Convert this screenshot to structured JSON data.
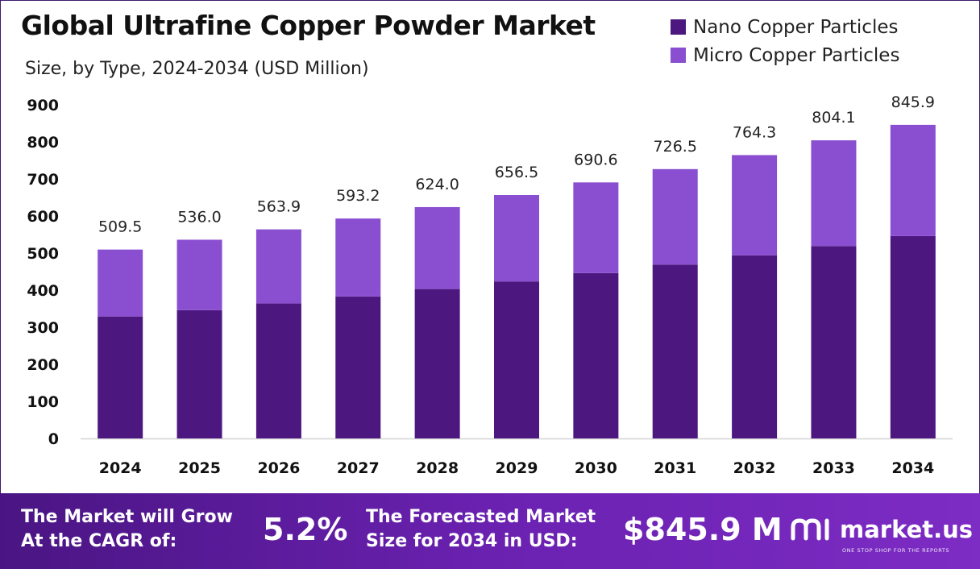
{
  "header": {
    "title": "Global Ultrafine Copper Powder Market",
    "subtitle": "Size, by Type, 2024-2034 (USD Million)"
  },
  "colors": {
    "nano": "#4d1780",
    "micro": "#8a4fd1",
    "footer_start": "#4a1583",
    "footer_end": "#7d2cc4"
  },
  "chart_data": {
    "type": "bar",
    "stacked": true,
    "title": "Global Ultrafine Copper Powder Market",
    "subtitle": "Size, by Type, 2024-2034 (USD Million)",
    "categories": [
      "2024",
      "2025",
      "2026",
      "2027",
      "2028",
      "2029",
      "2030",
      "2031",
      "2032",
      "2033",
      "2034"
    ],
    "series": [
      {
        "name": "Nano Copper Particles",
        "color": "#4d1780",
        "values": [
          329.0,
          346.0,
          364.0,
          383.0,
          403.0,
          423.5,
          446.0,
          469.0,
          494.0,
          519.0,
          546.0
        ]
      },
      {
        "name": "Micro Copper Particles",
        "color": "#8a4fd1",
        "values": [
          180.5,
          190.0,
          199.9,
          210.2,
          221.0,
          233.0,
          244.6,
          257.5,
          270.3,
          285.1,
          299.9
        ]
      }
    ],
    "totals": [
      509.5,
      536.0,
      563.9,
      593.2,
      624.0,
      656.5,
      690.6,
      726.5,
      764.3,
      804.1,
      845.9
    ],
    "total_labels": [
      "509.5",
      "536.0",
      "563.9",
      "593.2",
      "624.0",
      "656.5",
      "690.6",
      "726.5",
      "764.3",
      "804.1",
      "845.9"
    ],
    "yticks": [
      "0",
      "100",
      "200",
      "300",
      "400",
      "500",
      "600",
      "700",
      "800",
      "900"
    ],
    "ylim": [
      0,
      900
    ],
    "grid": false,
    "legend_position": "top-right"
  },
  "footer": {
    "cagr_label": "The Market will Grow At the CAGR of:",
    "cagr_value": "5.2%",
    "size_label": "The Forecasted Market Size for 2034 in USD:",
    "size_value": "$845.9 M",
    "brand_name": "market.us",
    "brand_tagline": "ONE STOP SHOP FOR THE REPORTS"
  }
}
